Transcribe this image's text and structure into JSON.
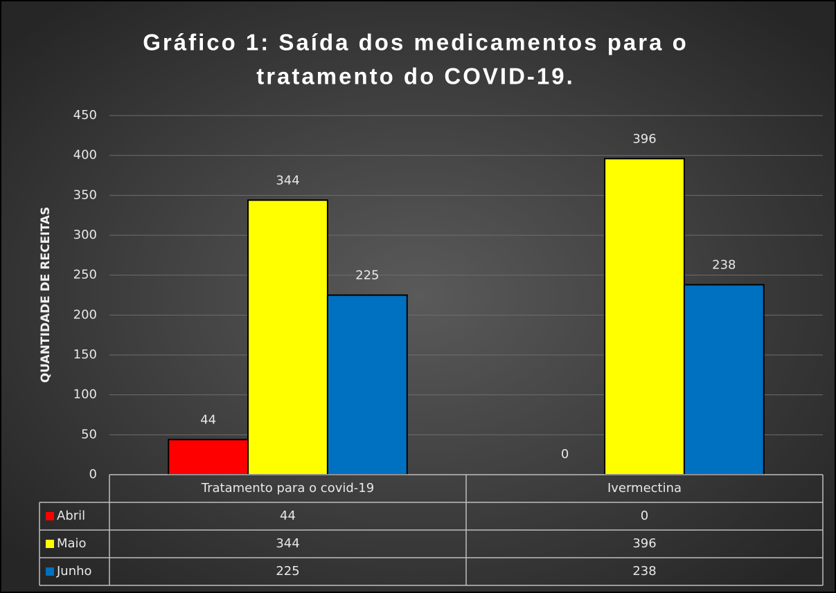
{
  "chart_data": {
    "type": "bar",
    "title": "Gráfico 1: Saída dos medicamentos para o tratamento do COVID-19.",
    "y_label": "QUANTIDADE DE RECEITAS",
    "categories": [
      "Tratamento para o covid-19",
      "Ivermectina"
    ],
    "series": [
      {
        "name": "Abril",
        "color": "#ff0000",
        "values": [
          44,
          0
        ]
      },
      {
        "name": "Maio",
        "color": "#ffff00",
        "values": [
          344,
          396
        ]
      },
      {
        "name": "Junho",
        "color": "#0070c0",
        "values": [
          225,
          238
        ]
      }
    ],
    "ylim": [
      0,
      450
    ],
    "yticks": [
      0,
      50,
      100,
      150,
      200,
      250,
      300,
      350,
      400,
      450
    ],
    "grid": true,
    "data_table": true
  }
}
